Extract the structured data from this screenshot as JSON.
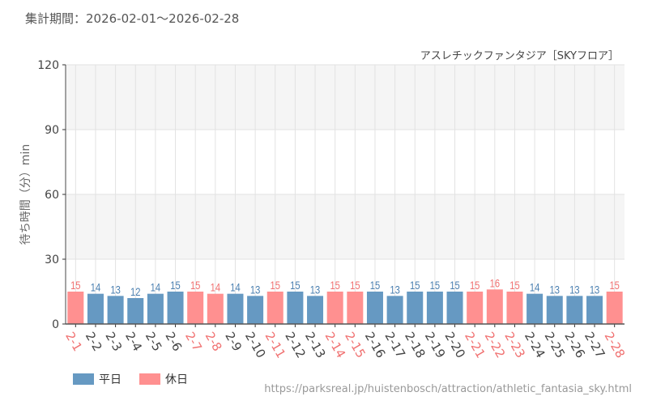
{
  "header": {
    "period": "集計期間：2026-02-01～2026-02-28",
    "subtitle": "アスレチックファンタジア［SKYフロア］"
  },
  "legend": {
    "weekday_label": "平日",
    "holiday_label": "休日"
  },
  "footer": {
    "url": "https://parksreal.jp/huistenbosch/attraction/athletic_fantasia_sky.html"
  },
  "colors": {
    "weekday": "#6699c2",
    "holiday": "#ff9090",
    "weekday_text": "#4a7fb0",
    "holiday_text": "#f07070",
    "band": "#f5f5f5",
    "grid": "#e2e2e2",
    "axis": "#666666"
  },
  "chart_data": {
    "type": "bar",
    "title": "アスレチックファンタジア［SKYフロア］",
    "subtitle": "集計期間：2026-02-01～2026-02-28",
    "xlabel": "",
    "ylabel": "待ち時間（分）min",
    "ylim": [
      0,
      120
    ],
    "yticks": [
      0,
      30,
      60,
      90,
      120
    ],
    "grid": true,
    "legend_position": "bottom-left",
    "legend": [
      "平日",
      "休日"
    ],
    "categories": [
      "2-1",
      "2-2",
      "2-3",
      "2-4",
      "2-5",
      "2-6",
      "2-7",
      "2-8",
      "2-9",
      "2-10",
      "2-11",
      "2-12",
      "2-13",
      "2-14",
      "2-15",
      "2-16",
      "2-17",
      "2-18",
      "2-19",
      "2-20",
      "2-21",
      "2-22",
      "2-23",
      "2-24",
      "2-25",
      "2-26",
      "2-27",
      "2-28"
    ],
    "values": [
      15,
      14,
      13,
      12,
      14,
      15,
      15,
      14,
      14,
      13,
      15,
      15,
      13,
      15,
      15,
      15,
      13,
      15,
      15,
      15,
      15,
      16,
      15,
      14,
      13,
      13,
      13,
      15
    ],
    "day_type": [
      "休日",
      "平日",
      "平日",
      "平日",
      "平日",
      "平日",
      "休日",
      "休日",
      "平日",
      "平日",
      "休日",
      "平日",
      "平日",
      "休日",
      "休日",
      "平日",
      "平日",
      "平日",
      "平日",
      "平日",
      "休日",
      "休日",
      "休日",
      "平日",
      "平日",
      "平日",
      "平日",
      "休日"
    ]
  }
}
